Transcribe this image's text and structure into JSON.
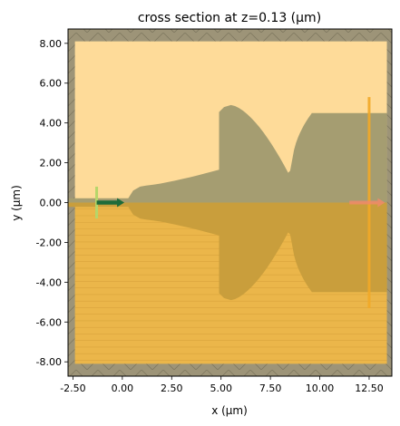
{
  "chart_data": {
    "type": "heatmap",
    "title": "cross section at z=0.13 (µm)",
    "xlabel": "x (µm)",
    "ylabel": "y (µm)",
    "xlim": [
      -2.75,
      13.65
    ],
    "ylim": [
      -8.72,
      8.72
    ],
    "grid": false,
    "xticks": [
      -2.5,
      0,
      2.5,
      5,
      7.5,
      10,
      12.5
    ],
    "xtick_labels": [
      "-2.50",
      "0.00",
      "2.50",
      "5.00",
      "7.50",
      "10.00",
      "12.50"
    ],
    "yticks": [
      8,
      6,
      4,
      2,
      0,
      -2,
      -4,
      -6,
      -8
    ],
    "ytick_labels": [
      "8.00",
      "6.00",
      "4.00",
      "2.00",
      "0.00",
      "-2.00",
      "-4.00",
      "-6.00",
      "-8.00"
    ],
    "simulation_domain": {
      "x": [
        -2.4,
        13.4
      ],
      "y": [
        -8.1,
        8.1
      ]
    },
    "pml_region": {
      "x": [
        -2.75,
        13.65
      ],
      "y": [
        -8.72,
        8.72
      ]
    },
    "regions": [
      {
        "name": "upper cladding",
        "y_range": [
          0,
          8.1
        ],
        "color": "#fedb99"
      },
      {
        "name": "substrate",
        "y_range": [
          -8.1,
          0
        ],
        "color": "#ebb64a"
      }
    ],
    "structures": [
      {
        "name": "input waveguide",
        "x_range": [
          -2.75,
          0.3
        ],
        "half_width": 0.22
      },
      {
        "name": "taper",
        "x_range": [
          0.3,
          4.9
        ],
        "half_width_start": 0.4,
        "half_width_end": 1.65
      },
      {
        "name": "mmi section 1",
        "x_range": [
          4.9,
          8.4
        ],
        "half_width_max": 4.9
      },
      {
        "name": "mmi section 2",
        "x_range": [
          8.6,
          13.4
        ],
        "half_width": 4.5
      }
    ],
    "source": {
      "x": -1.3,
      "y": 0,
      "y_span": [
        -0.8,
        0.8
      ],
      "direction": "+x",
      "color": "#1e6b3a"
    },
    "monitors": [
      {
        "x": 12.5,
        "y_span": [
          -5.3,
          5.3
        ],
        "color": "#f2a927"
      }
    ],
    "structure_color": "#a59d71",
    "pml_color": "#9d9478",
    "colors": {
      "upper": "#fedb99",
      "lower": "#ebb64a",
      "structure": "#a59d71",
      "structure_lower": "#c99e3c",
      "pml": "#9d9478",
      "source_line": "#b5d66a",
      "arrow": "#1e6b3a",
      "monitor": "#f2a927",
      "monitor_arrow": "#f08a68"
    }
  }
}
